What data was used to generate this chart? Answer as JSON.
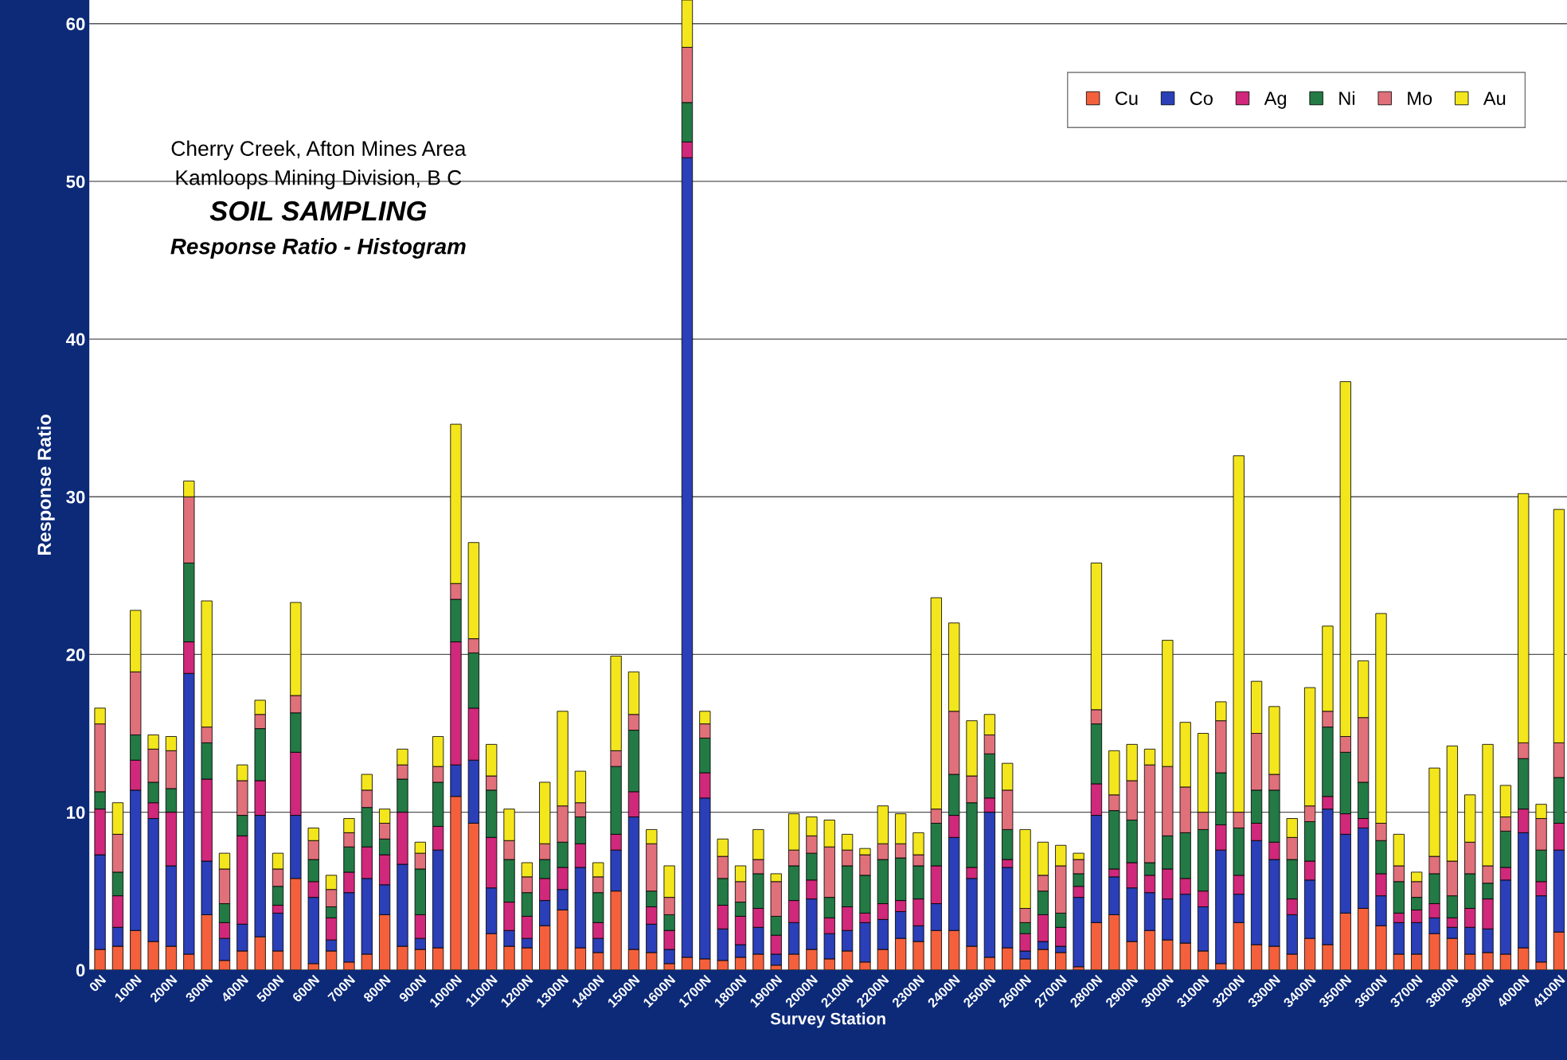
{
  "chart_data": {
    "type": "bar",
    "stacked": true,
    "title": "SOIL SAMPLING",
    "subtitle": "Response Ratio - Histogram",
    "annotations": [
      "Cherry Creek, Afton Mines Area",
      "Kamloops Mining Division, B C"
    ],
    "xlabel": "Survey Station",
    "ylabel": "Response Ratio",
    "categories": [
      "0N",
      null,
      "100N",
      null,
      "200N",
      null,
      "300N",
      null,
      "400N",
      null,
      "500N",
      null,
      "600N",
      null,
      "700N",
      null,
      "800N",
      null,
      "900N",
      null,
      "1000N",
      null,
      "1100N",
      null,
      "1200N",
      null,
      "1300N",
      null,
      "1400N",
      null,
      "1500N",
      null,
      "1600N",
      null,
      "1700N",
      null,
      "1800N",
      null,
      "1900N",
      null,
      "2000N",
      null,
      "2100N",
      null,
      "2200N",
      null,
      "2300N",
      null,
      "2400N",
      null,
      "2500N",
      null,
      "2600N",
      null,
      "2700N",
      null,
      "2800N",
      null,
      "2900N",
      null,
      "3000N",
      null,
      "3100N",
      null,
      "3200N",
      null,
      "3300N",
      null,
      "3400N",
      null,
      "3500N",
      null,
      "3600N",
      null,
      "3700N",
      null,
      "3800N",
      null,
      "3900N",
      null,
      "4000N",
      null,
      "4100N"
    ],
    "series": [
      {
        "name": "Cu",
        "color": "#f4603c",
        "values": [
          1.3,
          1.5,
          2.5,
          1.8,
          1.5,
          1.0,
          3.5,
          0.6,
          1.2,
          2.1,
          1.2,
          5.8,
          0.4,
          1.2,
          0.5,
          1.0,
          3.5,
          1.5,
          1.3,
          1.4,
          11.0,
          9.3,
          2.3,
          1.5,
          1.4,
          2.8,
          3.8,
          1.4,
          1.1,
          5.0,
          1.3,
          1.1,
          0.4,
          0.8,
          0.7,
          0.6,
          0.8,
          1.0,
          0.3,
          1.0,
          1.3,
          0.7,
          1.2,
          0.5,
          1.3,
          2.0,
          1.8,
          2.5,
          2.5,
          1.5,
          0.8,
          1.4,
          0.7,
          1.3,
          1.1,
          0.2,
          3.0,
          3.5,
          1.8,
          2.5,
          1.9,
          1.7,
          1.2,
          0.4,
          3.0,
          1.6,
          1.5,
          1.0,
          2.0,
          1.6,
          3.6,
          3.9,
          2.8,
          1.0,
          1.0,
          2.3,
          2.0,
          1.0,
          1.1,
          1.0,
          1.4,
          0.5,
          2.4
        ]
      },
      {
        "name": "Co",
        "color": "#2a3fb8",
        "values": [
          6.0,
          1.2,
          8.9,
          7.8,
          5.1,
          17.8,
          3.4,
          1.4,
          1.7,
          7.7,
          2.4,
          4.0,
          4.2,
          0.7,
          4.4,
          4.8,
          1.9,
          5.2,
          0.7,
          6.2,
          2.0,
          4.0,
          2.9,
          1.0,
          0.6,
          1.6,
          1.3,
          5.1,
          0.9,
          2.6,
          8.4,
          1.8,
          0.9,
          50.7,
          10.2,
          2.0,
          0.8,
          1.7,
          0.7,
          2.0,
          3.2,
          1.6,
          1.3,
          2.5,
          1.9,
          1.7,
          1.0,
          1.7,
          5.9,
          4.3,
          9.2,
          5.1,
          0.5,
          0.5,
          0.4,
          4.4,
          6.8,
          2.4,
          3.4,
          2.4,
          2.6,
          3.1,
          2.8,
          7.2,
          1.8,
          6.6,
          5.5,
          2.5,
          3.7,
          8.6,
          5.0,
          5.1,
          1.9,
          2.0,
          2.0,
          1.0,
          0.7,
          1.7,
          1.5,
          4.7,
          7.3,
          4.2,
          5.2
        ]
      },
      {
        "name": "Ag",
        "color": "#d0287a",
        "values": [
          2.9,
          2.0,
          1.9,
          1.0,
          3.4,
          2.0,
          5.2,
          1.0,
          5.6,
          2.2,
          0.5,
          4.0,
          1.0,
          1.4,
          1.3,
          2.0,
          1.9,
          3.3,
          1.5,
          1.5,
          7.8,
          3.3,
          3.2,
          1.8,
          1.4,
          1.4,
          1.4,
          1.5,
          1.0,
          1.0,
          1.6,
          1.1,
          1.2,
          1.0,
          1.6,
          1.5,
          1.8,
          1.2,
          1.2,
          1.4,
          1.2,
          1.0,
          1.5,
          0.6,
          1.0,
          0.7,
          1.7,
          2.4,
          1.4,
          0.7,
          0.9,
          0.5,
          1.1,
          1.7,
          1.2,
          0.7,
          2.0,
          0.5,
          1.6,
          1.1,
          1.9,
          1.0,
          1.0,
          1.6,
          1.2,
          1.1,
          1.1,
          1.0,
          1.2,
          0.8,
          1.3,
          0.6,
          1.4,
          0.6,
          0.8,
          0.9,
          0.6,
          1.2,
          1.9,
          0.8,
          1.5,
          0.9,
          1.7
        ]
      },
      {
        "name": "Ni",
        "color": "#237a45",
        "values": [
          1.1,
          1.5,
          1.6,
          1.3,
          1.5,
          5.0,
          2.3,
          1.2,
          1.3,
          3.3,
          1.2,
          2.5,
          1.4,
          0.7,
          1.6,
          2.5,
          1.0,
          2.1,
          2.9,
          2.8,
          2.7,
          3.5,
          3.0,
          2.7,
          1.5,
          1.2,
          1.6,
          1.7,
          1.9,
          4.3,
          3.9,
          1.0,
          1.0,
          2.5,
          2.2,
          1.7,
          0.9,
          2.2,
          1.2,
          2.2,
          1.7,
          1.3,
          2.6,
          2.4,
          2.8,
          2.7,
          2.1,
          2.7,
          2.6,
          4.1,
          2.8,
          1.9,
          0.7,
          1.5,
          0.9,
          0.8,
          3.8,
          3.7,
          2.7,
          0.8,
          2.1,
          2.9,
          3.9,
          3.3,
          3.0,
          2.1,
          3.3,
          2.5,
          2.5,
          4.4,
          3.9,
          2.3,
          2.1,
          2.0,
          0.8,
          1.9,
          1.4,
          2.2,
          1.0,
          2.3,
          3.2,
          2.0,
          2.9
        ]
      },
      {
        "name": "Mo",
        "color": "#e0707a",
        "values": [
          4.3,
          2.4,
          4.0,
          2.1,
          2.4,
          4.2,
          1.0,
          2.2,
          2.2,
          0.9,
          1.1,
          1.1,
          1.2,
          1.1,
          0.9,
          1.1,
          1.0,
          0.9,
          1.0,
          1.0,
          1.0,
          0.9,
          0.9,
          1.2,
          1.0,
          1.0,
          2.3,
          0.9,
          1.0,
          1.0,
          1.0,
          3.0,
          1.1,
          3.5,
          0.9,
          1.4,
          1.3,
          0.9,
          2.2,
          1.0,
          1.1,
          3.2,
          1.0,
          1.3,
          1.0,
          0.9,
          0.7,
          0.9,
          4.0,
          1.7,
          1.2,
          2.5,
          0.9,
          1.0,
          3.0,
          0.9,
          0.9,
          1.0,
          2.5,
          6.2,
          4.4,
          2.9,
          1.1,
          3.3,
          1.0,
          3.6,
          1.0,
          1.4,
          1.0,
          1.0,
          1.0,
          4.1,
          1.1,
          1.0,
          1.0,
          1.1,
          2.2,
          2.0,
          1.1,
          0.9,
          1.0,
          2.0,
          2.2
        ]
      },
      {
        "name": "Au",
        "color": "#f4e61c",
        "values": [
          1.0,
          2.0,
          3.9,
          0.9,
          0.9,
          1.0,
          8.0,
          1.0,
          1.0,
          0.9,
          1.0,
          5.9,
          0.8,
          0.9,
          0.9,
          1.0,
          0.9,
          1.0,
          0.7,
          1.9,
          10.1,
          6.1,
          2.0,
          2.0,
          0.9,
          3.9,
          6.0,
          2.0,
          0.9,
          6.0,
          2.7,
          0.9,
          2.0,
          3.0,
          0.8,
          1.1,
          1.0,
          1.9,
          0.5,
          2.3,
          1.2,
          1.7,
          1.0,
          0.4,
          2.4,
          1.9,
          1.4,
          13.4,
          5.6,
          3.5,
          1.3,
          1.7,
          5.0,
          2.1,
          1.3,
          0.4,
          9.3,
          2.8,
          2.3,
          1.0,
          8.0,
          4.1,
          5.0,
          1.2,
          22.6,
          3.3,
          4.3,
          1.2,
          7.5,
          5.4,
          22.5,
          3.6,
          13.3,
          2.0,
          0.6,
          5.6,
          7.3,
          3.0,
          7.7,
          2.0,
          15.8,
          0.9,
          14.8
        ]
      }
    ],
    "ylim": [
      0,
      61.5
    ],
    "yticks": [
      0,
      10,
      20,
      30,
      40,
      50,
      60
    ],
    "grid": "y",
    "legend": "top right"
  }
}
